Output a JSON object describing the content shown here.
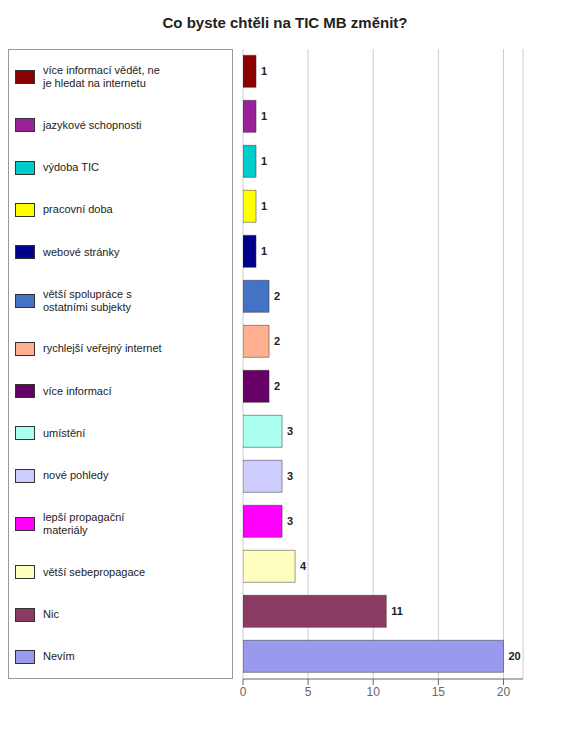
{
  "chart_data": {
    "type": "bar",
    "title": "Co byste chtěli na TIC MB změnit?",
    "orientation": "horizontal",
    "categories": [
      "více informací vědět, ne\nje hledat na internetu",
      "jazykové schopnosti",
      "výdoba TIC",
      "pracovní doba",
      "webové stránky",
      "větší spolupráce s\nostatními subjekty",
      "rychlejší veřejný internet",
      "více informací",
      "umístění",
      "nové pohledy",
      "lepší propagační\nmateriály",
      "větší sebepropagace",
      "Nic",
      "Nevím"
    ],
    "values": [
      1,
      1,
      1,
      1,
      1,
      2,
      2,
      2,
      3,
      3,
      3,
      4,
      11,
      20
    ],
    "colors": [
      "#8B0000",
      "#992299",
      "#00CCCC",
      "#FFFF00",
      "#00008B",
      "#4472C4",
      "#FFB090",
      "#660066",
      "#AAFFEE",
      "#CCCCFF",
      "#FF00FF",
      "#FFFFC0",
      "#8B3A62",
      "#9999EE"
    ],
    "xlim": [
      0,
      21.5
    ],
    "xticks": [
      0,
      5,
      10,
      15,
      20
    ],
    "grid": true,
    "data_labels": true,
    "tick_labels": "x",
    "legend": "left"
  }
}
